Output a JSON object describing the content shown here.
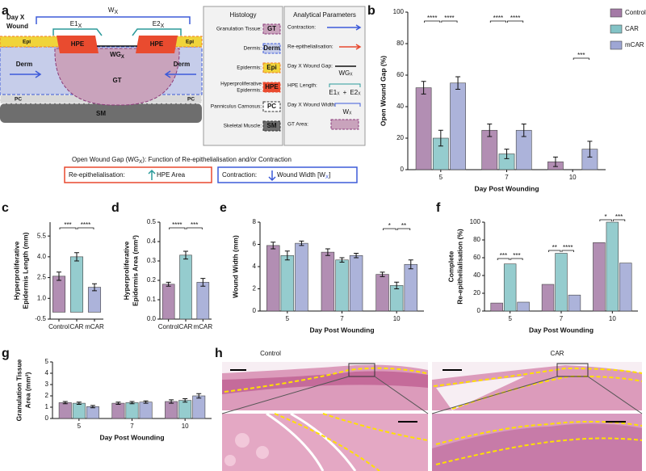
{
  "panel_labels": [
    "a",
    "b",
    "c",
    "d",
    "e",
    "f",
    "g",
    "h"
  ],
  "diagram": {
    "title": [
      "Day X",
      "Wound"
    ],
    "wound_width": {
      "base": "W",
      "sub": "X"
    },
    "e1": {
      "base": "E1",
      "sub": "X"
    },
    "e2": {
      "base": "E2",
      "sub": "X"
    },
    "wound_gap": {
      "base": "WG",
      "sub": "X"
    },
    "layers": {
      "epi": "Epi",
      "hpe": "HPE",
      "derm": "Derm",
      "gt": "GT",
      "pc": "PC",
      "sm": "SM"
    },
    "histology": {
      "title": "Histology",
      "items": [
        {
          "label": [
            "Granulation Tissue:"
          ],
          "swatch": "GT"
        },
        {
          "label": [
            "Dermis:"
          ],
          "swatch": "Derm"
        },
        {
          "label": [
            "Epidermis:"
          ],
          "swatch": "Epi"
        },
        {
          "label": [
            "Hyperproliferative",
            "Epidermis:"
          ],
          "swatch": "HPE"
        },
        {
          "label": [
            "Panniculus Carnosus:"
          ],
          "swatch": "PC"
        },
        {
          "label": [
            "Skeletal Muscle:"
          ],
          "swatch": "SM"
        }
      ]
    },
    "parameters": {
      "title": "Analytical Parameters",
      "items": [
        "Contraction:",
        "Re-epithelialisation:",
        "Day X Wound Gap:",
        "HPE Length:",
        "Day X Wound Width:",
        "GT Area:"
      ],
      "plus": "+"
    },
    "caption": {
      "pre": "Open Wound Gap (WG",
      "sub": "X",
      "post": "): Function of Re-epithelialisation and/or Contraction"
    },
    "boxes": [
      {
        "label": "Re-epithelialisation:",
        "value": {
          "pre": "HPE  Area",
          "sub": "",
          "post": ""
        }
      },
      {
        "label": "Contraction:",
        "value": {
          "pre": "Wound Width [W",
          "sub": "X",
          "post": "]"
        }
      }
    ]
  },
  "chart_data": [
    {
      "type": "bar",
      "ylabel": [
        "Open Wound Gap (%)"
      ],
      "xlabel": "Day Post Wounding",
      "categories": [
        "5",
        "7",
        "10"
      ],
      "series": [
        {
          "name": "Control",
          "color": "#a47aa6",
          "values": [
            52,
            25,
            5
          ],
          "errors": [
            4,
            4,
            3
          ]
        },
        {
          "name": "CAR",
          "color": "#83c3c6",
          "values": [
            20,
            10,
            0
          ],
          "errors": [
            5,
            3,
            0
          ]
        },
        {
          "name": "mCAR",
          "color": "#9ea6d4",
          "values": [
            55,
            25,
            13
          ],
          "errors": [
            4,
            4,
            5
          ]
        }
      ],
      "ylim": [
        0,
        100
      ],
      "yticks": [
        0,
        20,
        40,
        60,
        80,
        100
      ],
      "legend": "right",
      "annotations": [
        "****",
        "****",
        "****",
        "****",
        "***"
      ]
    },
    {
      "type": "bar",
      "ylabel": [
        "Hyperproliferative",
        "Epidermis Length (mm)"
      ],
      "categories": [
        "Control",
        "CAR",
        "mCAR"
      ],
      "values": [
        2.6,
        4.0,
        1.8
      ],
      "errors": [
        0.3,
        0.3,
        0.25
      ],
      "colors": [
        "#a47aa6",
        "#83c3c6",
        "#9ea6d4"
      ],
      "ylim": [
        -0.5,
        6.5
      ],
      "yticks": [
        -0.5,
        {
          "value": 1,
          "label": "1.0"
        },
        2.5,
        {
          "value": 4,
          "label": "4.0"
        },
        5.5
      ],
      "annotations": [
        "***",
        "****"
      ]
    },
    {
      "type": "bar",
      "ylabel": [
        "Hyperproliferative",
        "Epidermis Area (mm²)"
      ],
      "categories": [
        "Control",
        "CAR",
        "mCAR"
      ],
      "values": [
        0.18,
        0.33,
        0.19
      ],
      "errors": [
        0.01,
        0.02,
        0.02
      ],
      "colors": [
        "#a47aa6",
        "#83c3c6",
        "#9ea6d4"
      ],
      "ylim": [
        0,
        0.5
      ],
      "yticks": [
        {
          "value": 0,
          "label": "0.0"
        },
        0.1,
        0.2,
        0.3,
        0.4,
        0.5
      ],
      "annotations": [
        "****",
        "***"
      ]
    },
    {
      "type": "bar",
      "ylabel": [
        "Wound Width (mm)"
      ],
      "xlabel": "Day Post Wounding",
      "categories": [
        "5",
        "7",
        "10"
      ],
      "series": [
        {
          "name": "Control",
          "color": "#a47aa6",
          "values": [
            5.9,
            5.3,
            3.3
          ],
          "errors": [
            0.3,
            0.3,
            0.2
          ]
        },
        {
          "name": "CAR",
          "color": "#83c3c6",
          "values": [
            5.0,
            4.6,
            2.3
          ],
          "errors": [
            0.4,
            0.2,
            0.3
          ]
        },
        {
          "name": "mCAR",
          "color": "#9ea6d4",
          "values": [
            6.1,
            5.0,
            4.2
          ],
          "errors": [
            0.2,
            0.2,
            0.4
          ]
        }
      ],
      "ylim": [
        0,
        8
      ],
      "yticks": [
        0,
        2,
        4,
        6,
        8
      ],
      "annotations": [
        "*",
        "**"
      ]
    },
    {
      "type": "bar",
      "ylabel": [
        "Complete",
        "Re-epithelialisation (%)"
      ],
      "xlabel": "Day Post Wounding",
      "categories": [
        "5",
        "7",
        "10"
      ],
      "series": [
        {
          "name": "Control",
          "color": "#a47aa6",
          "values": [
            9,
            30,
            77
          ]
        },
        {
          "name": "CAR",
          "color": "#83c3c6",
          "values": [
            53,
            65,
            100
          ]
        },
        {
          "name": "mCAR",
          "color": "#9ea6d4",
          "values": [
            10,
            18,
            54
          ]
        }
      ],
      "ylim": [
        0,
        100
      ],
      "yticks": [
        0,
        20,
        40,
        60,
        80,
        100
      ],
      "annotations": [
        "***",
        "***",
        "**",
        "****",
        "*",
        "***"
      ]
    },
    {
      "type": "bar",
      "ylabel": [
        "Granulation Tissue",
        "Area (mm²)"
      ],
      "xlabel": "Day Post Wounding",
      "categories": [
        "5",
        "7",
        "10"
      ],
      "series": [
        {
          "name": "Control",
          "color": "#a47aa6",
          "values": [
            1.4,
            1.35,
            1.5
          ],
          "errors": [
            0.1,
            0.1,
            0.15
          ]
        },
        {
          "name": "CAR",
          "color": "#83c3c6",
          "values": [
            1.35,
            1.4,
            1.6
          ],
          "errors": [
            0.1,
            0.1,
            0.15
          ]
        },
        {
          "name": "mCAR",
          "color": "#9ea6d4",
          "values": [
            1.05,
            1.45,
            2.0
          ],
          "errors": [
            0.1,
            0.1,
            0.2
          ]
        }
      ],
      "ylim": [
        0,
        5
      ],
      "yticks": [
        0,
        1,
        2,
        3,
        4,
        5
      ]
    }
  ],
  "micrographs": {
    "labels": [
      "Control",
      "CAR"
    ]
  }
}
